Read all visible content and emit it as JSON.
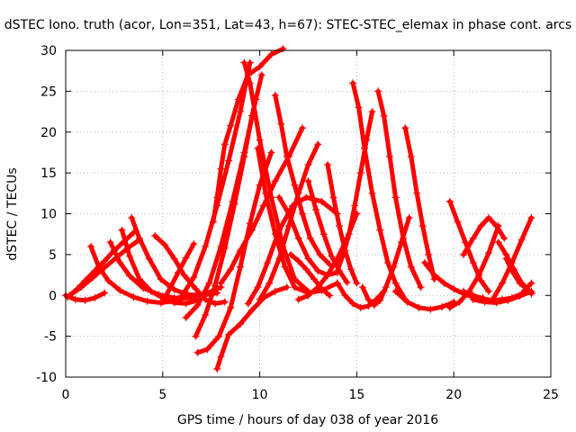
{
  "chart_data": {
    "type": "line",
    "title": "dSTEC Iono. truth (acor, Lon=351, Lat=43, h=67): STEC-STEC_elemax in phase cont. arcs",
    "xlabel": "GPS time / hours of day 038 of year 2016",
    "ylabel": "dSTEC  / TECUs",
    "xlim": [
      0,
      25
    ],
    "ylim": [
      -10,
      30
    ],
    "xticks": [
      "0",
      "5",
      "10",
      "15",
      "20",
      "25"
    ],
    "yticks": [
      "-10",
      "-5",
      "0",
      "5",
      "10",
      "15",
      "20",
      "25",
      "30"
    ],
    "grid": true,
    "color": "#ff0000",
    "marker": "plus",
    "series": [
      {
        "x": [
          0,
          0.5,
          1.0,
          1.5,
          2.0
        ],
        "y": [
          0,
          -0.5,
          -0.6,
          -0.3,
          0.3
        ]
      },
      {
        "x": [
          0.1,
          0.6,
          1.0,
          1.5,
          2.0,
          2.5,
          3.0,
          3.5
        ],
        "y": [
          -0.2,
          0.8,
          1.8,
          3.0,
          4.2,
          5.5,
          6.6,
          7.7
        ]
      },
      {
        "x": [
          1.3,
          1.7,
          2.2,
          2.8,
          3.5,
          4.2,
          4.9,
          5.6,
          6.3
        ],
        "y": [
          6.0,
          3.5,
          1.8,
          0.6,
          -0.2,
          -0.7,
          -0.9,
          -0.7,
          -0.2
        ]
      },
      {
        "x": [
          0.2,
          0.8,
          1.4,
          2.0,
          2.6,
          3.2,
          3.8
        ],
        "y": [
          0.0,
          1.0,
          2.2,
          3.4,
          4.6,
          5.8,
          6.8
        ]
      },
      {
        "x": [
          2.3,
          2.8,
          3.3,
          4.0,
          4.8,
          5.6,
          6.4,
          7.2,
          8.0
        ],
        "y": [
          6.5,
          4.0,
          2.4,
          0.9,
          0.1,
          -0.3,
          -0.3,
          0.2,
          1.0
        ]
      },
      {
        "x": [
          2.9,
          3.3,
          3.8,
          4.4,
          5.0,
          5.6,
          6.2,
          6.8
        ],
        "y": [
          8.0,
          4.8,
          2.0,
          0.5,
          -0.3,
          -0.9,
          -1.0,
          -0.6
        ]
      },
      {
        "x": [
          3.4,
          3.8,
          4.3,
          4.9,
          5.6,
          6.3,
          7.0,
          7.8
        ],
        "y": [
          9.5,
          7.0,
          4.5,
          2.0,
          0.7,
          0.1,
          0.0,
          0.3
        ]
      },
      {
        "x": [
          4.6,
          5.1,
          5.6,
          6.1,
          6.7,
          7.2,
          7.7,
          8.2
        ],
        "y": [
          7.3,
          6.2,
          4.5,
          2.5,
          0.8,
          -0.5,
          -1.0,
          -0.8
        ]
      },
      {
        "x": [
          5.0,
          5.4,
          5.8,
          6.2,
          6.6
        ],
        "y": [
          -0.8,
          1.0,
          2.8,
          4.6,
          6.3
        ]
      },
      {
        "x": [
          6.0,
          6.6,
          7.2,
          7.8,
          8.4,
          9.0,
          9.5
        ],
        "y": [
          0.0,
          2.2,
          6.0,
          11.0,
          16.5,
          22.5,
          28.5
        ]
      },
      {
        "x": [
          6.2,
          6.8,
          7.4,
          8.0,
          8.6,
          9.2,
          9.8
        ],
        "y": [
          -2.7,
          -1.2,
          1.5,
          6.0,
          11.5,
          17.5,
          24.0
        ]
      },
      {
        "x": [
          6.7,
          7.2,
          7.7,
          8.2,
          8.7,
          9.2,
          9.6,
          10.1
        ],
        "y": [
          -5.0,
          -2.4,
          1.2,
          5.8,
          11.2,
          17.0,
          22.0,
          27.0
        ]
      },
      {
        "x": [
          6.8,
          7.3,
          7.9,
          8.5,
          9.0,
          9.5,
          10.0,
          10.6
        ],
        "y": [
          -7.0,
          -6.6,
          -5.0,
          -1.5,
          3.5,
          8.8,
          13.5,
          17.5
        ]
      },
      {
        "x": [
          7.8,
          8.0,
          8.4,
          9.0,
          9.6,
          10.2,
          10.8,
          11.4
        ],
        "y": [
          -9.0,
          -7.5,
          -4.8,
          -3.5,
          -1.8,
          -0.3,
          0.5,
          1.0
        ]
      },
      {
        "x": [
          7.6,
          7.8,
          8.0,
          8.2,
          8.5,
          8.9,
          9.4,
          10.0,
          10.6,
          11.2
        ],
        "y": [
          9.0,
          12.0,
          15.5,
          18.5,
          20.8,
          24.0,
          27.0,
          28.0,
          29.5,
          30.2
        ]
      },
      {
        "x": [
          8.0,
          8.5,
          9.0,
          9.6,
          10.2,
          10.8,
          11.5,
          12.2
        ],
        "y": [
          1.5,
          3.2,
          5.5,
          8.0,
          11.0,
          14.0,
          17.0,
          20.5
        ]
      },
      {
        "x": [
          9.2,
          9.5,
          10.0,
          10.6,
          11.2,
          11.8,
          12.5
        ],
        "y": [
          28.5,
          26.0,
          19.0,
          12.0,
          6.0,
          2.0,
          0.5
        ]
      },
      {
        "x": [
          9.9,
          10.3,
          10.8,
          11.3,
          11.8,
          12.5,
          13.2,
          14.0
        ],
        "y": [
          18.0,
          12.5,
          7.5,
          3.5,
          1.0,
          0.3,
          0.6,
          1.5
        ]
      },
      {
        "x": [
          10.8,
          11.1,
          11.4,
          11.8,
          12.2,
          12.6,
          13.1,
          13.6
        ],
        "y": [
          24.5,
          21.0,
          17.0,
          13.5,
          10.0,
          7.0,
          5.0,
          3.8
        ]
      },
      {
        "x": [
          9.4,
          9.9,
          10.4,
          11.0,
          11.7,
          12.4,
          13.2,
          14.0
        ],
        "y": [
          -1.0,
          1.0,
          4.0,
          8.0,
          11.0,
          12.0,
          11.5,
          10.0
        ]
      },
      {
        "x": [
          10.0,
          10.5,
          11.0,
          11.5,
          12.0,
          12.5,
          13.0
        ],
        "y": [
          -0.5,
          1.5,
          4.5,
          8.5,
          12.5,
          16.0,
          18.5
        ]
      },
      {
        "x": [
          11.0,
          11.5,
          12.0,
          12.5,
          13.0,
          13.5,
          14.0
        ],
        "y": [
          12.0,
          10.0,
          7.0,
          4.5,
          3.0,
          2.5,
          2.8
        ]
      },
      {
        "x": [
          12.5,
          12.9,
          13.3,
          13.7,
          14.1,
          14.5
        ],
        "y": [
          14.0,
          10.5,
          7.5,
          4.8,
          3.0,
          1.6
        ]
      },
      {
        "x": [
          11.6,
          12.0,
          12.4,
          12.8,
          13.2,
          13.6
        ],
        "y": [
          5.0,
          4.2,
          3.2,
          2.0,
          0.8,
          0.0
        ]
      },
      {
        "x": [
          13.5,
          13.8,
          14.1,
          14.4,
          14.7,
          15.0
        ],
        "y": [
          16.0,
          12.0,
          8.5,
          5.5,
          3.2,
          1.5
        ]
      },
      {
        "x": [
          12.0,
          12.5,
          13.0,
          13.5,
          14.0,
          14.5,
          15.0
        ],
        "y": [
          -0.5,
          0.0,
          1.0,
          2.5,
          4.5,
          7.0,
          10.0
        ]
      },
      {
        "x": [
          14.8,
          15.1,
          15.4,
          15.8,
          16.2,
          16.6,
          17.0,
          17.5
        ],
        "y": [
          26.0,
          23.0,
          18.0,
          12.5,
          8.0,
          4.0,
          1.5,
          -0.5
        ]
      },
      {
        "x": [
          14.0,
          14.4,
          14.8,
          15.2,
          15.6,
          16.0,
          16.4
        ],
        "y": [
          1.5,
          0.0,
          -1.0,
          -1.5,
          -1.3,
          -0.5,
          0.5
        ]
      },
      {
        "x": [
          14.0,
          14.3,
          14.6,
          14.9,
          15.2,
          15.5,
          15.8
        ],
        "y": [
          3.0,
          5.0,
          7.5,
          11.0,
          15.0,
          19.0,
          22.5
        ]
      },
      {
        "x": [
          15.3,
          15.6,
          15.9,
          16.2,
          16.5,
          16.9,
          17.3,
          17.7
        ],
        "y": [
          1.0,
          -0.5,
          -1.2,
          -0.6,
          1.0,
          3.5,
          6.5,
          9.5
        ]
      },
      {
        "x": [
          16.1,
          16.4,
          16.7,
          17.0,
          17.4,
          17.8,
          18.3
        ],
        "y": [
          25.0,
          22.0,
          17.0,
          12.0,
          7.0,
          3.5,
          1.0
        ]
      },
      {
        "x": [
          17.5,
          17.8,
          18.1,
          18.4,
          18.7,
          19.0
        ],
        "y": [
          20.5,
          17.0,
          12.5,
          8.5,
          5.0,
          2.0
        ]
      },
      {
        "x": [
          17.0,
          17.6,
          18.2,
          18.8,
          19.4,
          20.0
        ],
        "y": [
          0.5,
          -0.8,
          -1.5,
          -1.7,
          -1.4,
          -0.8
        ]
      },
      {
        "x": [
          19.8,
          20.2,
          20.6,
          21.0,
          21.4,
          21.8
        ],
        "y": [
          11.5,
          9.0,
          6.5,
          4.0,
          1.8,
          0.5
        ]
      },
      {
        "x": [
          18.5,
          19.0,
          19.5,
          20.0,
          20.5,
          21.0,
          21.5
        ],
        "y": [
          4.0,
          2.5,
          1.5,
          0.8,
          0.2,
          -0.2,
          -0.3
        ]
      },
      {
        "x": [
          19.8,
          20.3,
          20.8,
          21.3,
          21.8,
          22.3
        ],
        "y": [
          -1.5,
          -0.8,
          0.5,
          2.5,
          5.2,
          8.5
        ]
      },
      {
        "x": [
          20.5,
          21.0,
          21.4,
          21.8,
          22.2,
          22.6
        ],
        "y": [
          5.0,
          7.0,
          8.5,
          9.5,
          8.5,
          7.0
        ]
      },
      {
        "x": [
          22.3,
          22.7,
          23.1,
          23.5,
          23.9,
          24.0
        ],
        "y": [
          6.5,
          5.0,
          3.2,
          1.5,
          0.5,
          0.2
        ]
      },
      {
        "x": [
          22.7,
          23.0,
          23.4,
          23.8,
          24.0
        ],
        "y": [
          4.5,
          3.0,
          1.5,
          0.7,
          0.3
        ]
      },
      {
        "x": [
          22.0,
          22.5,
          23.0,
          23.5,
          24.0
        ],
        "y": [
          -0.5,
          1.5,
          4.0,
          6.8,
          9.5
        ]
      },
      {
        "x": [
          20.5,
          21.0,
          21.5,
          22.0,
          22.5,
          23.0,
          23.5,
          24.0
        ],
        "y": [
          0.5,
          0.0,
          -0.4,
          -0.6,
          -0.5,
          -0.3,
          0.2,
          1.5
        ]
      },
      {
        "x": [
          21.0,
          21.6,
          22.2,
          22.8,
          23.4,
          24.0
        ],
        "y": [
          -0.5,
          -0.8,
          -0.9,
          -0.6,
          -0.1,
          0.5
        ]
      }
    ]
  }
}
